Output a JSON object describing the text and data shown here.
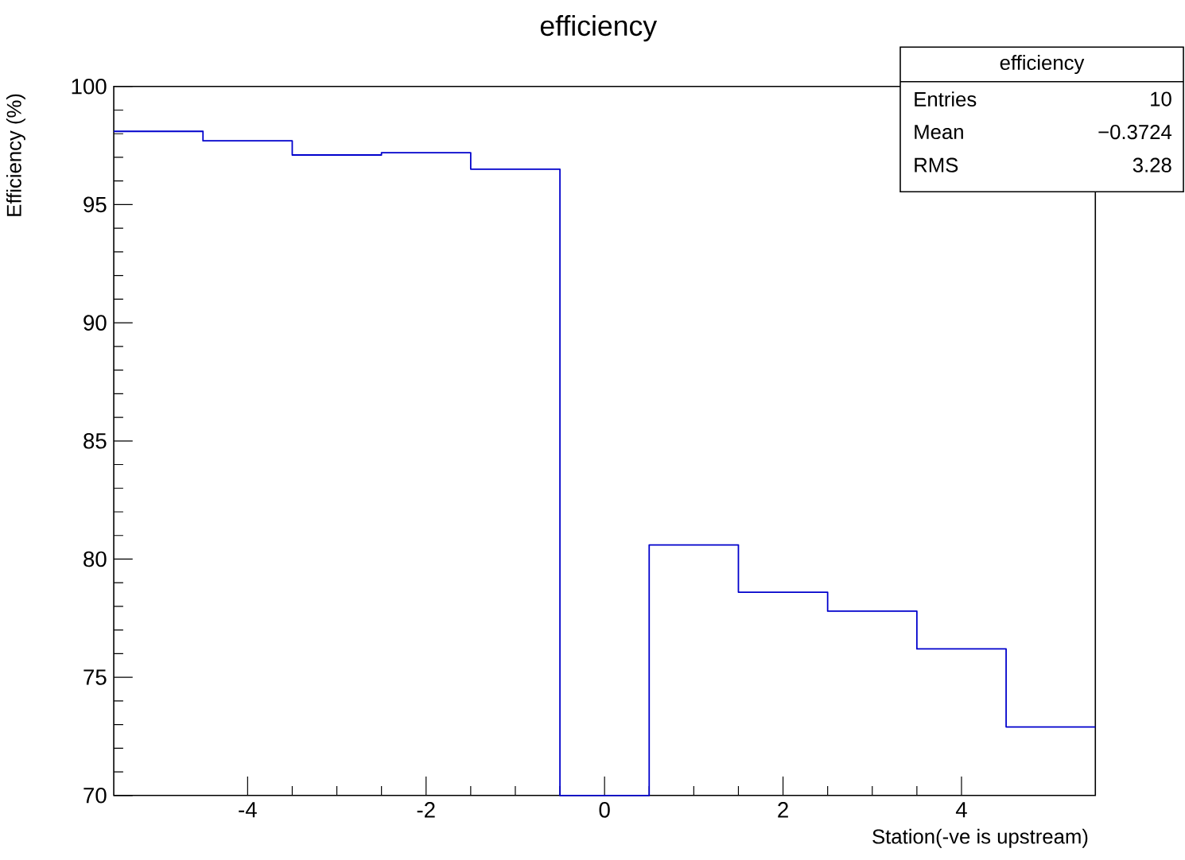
{
  "chart_data": {
    "type": "histogram",
    "title": "efficiency",
    "xlabel": "Station(-ve is upstream)",
    "ylabel": "Efficiency (%)",
    "bins": [
      -5.5,
      -4.5,
      -3.5,
      -2.5,
      -1.5,
      -0.5,
      0.5,
      1.5,
      2.5,
      3.5,
      4.5,
      5.5
    ],
    "values": [
      98.1,
      97.7,
      97.1,
      97.2,
      96.5,
      null,
      80.6,
      78.6,
      77.8,
      76.2,
      72.9
    ],
    "color": "#0000cc",
    "xlim": [
      -5.5,
      5.5
    ],
    "ylim": [
      70,
      100
    ],
    "xticks": [
      -4,
      -2,
      0,
      2,
      4
    ],
    "yticks": [
      70,
      75,
      80,
      85,
      90,
      95,
      100
    ],
    "grid": false,
    "annotations": [
      "efficiency",
      "Entries",
      "10",
      "Mean",
      "−0.3724",
      "RMS",
      "3.28"
    ]
  }
}
